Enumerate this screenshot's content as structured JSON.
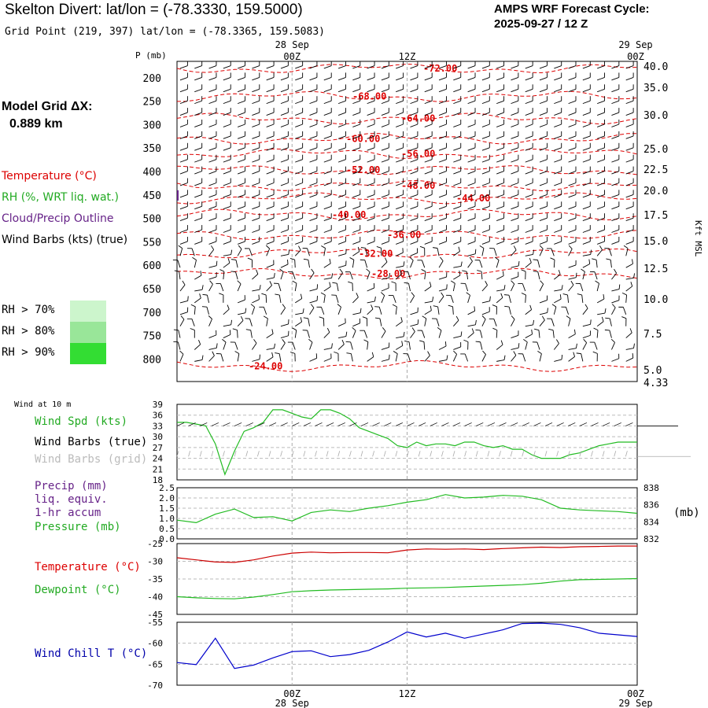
{
  "header": {
    "title": "Skelton Divert:  lat/lon = (-78.3330, 159.5000)",
    "subtitle": "Grid Point (219, 397) lat/lon = (-78.3365, 159.5083)",
    "cycle_line1": "AMPS WRF Forecast Cycle:",
    "cycle_line2": "2025-09-27 / 12  Z"
  },
  "grid_info": {
    "label": "Model Grid ΔX:",
    "value": "0.889 km"
  },
  "legend": {
    "temperature": "Temperature (°C)",
    "rh": "RH (%, WRT liq. wat.)",
    "cloud": "Cloud/Precip Outline",
    "wind_barbs": "Wind Barbs (kts) (true)",
    "rh70": "RH > 70%",
    "rh80": "RH > 80%",
    "rh90": "RH > 90%"
  },
  "colors": {
    "temperature": "#dd0000",
    "rh": "#22bb22",
    "cloud": "#662288",
    "rh70": "#ccf5cc",
    "rh80": "#99e699",
    "rh90": "#33dd33",
    "chill": "#0000cc",
    "grid_barbs": "#aaaaaa"
  },
  "time_axis": {
    "top_dates": [
      "28 Sep",
      "29 Sep"
    ],
    "labels": [
      "00Z",
      "12Z",
      "00Z"
    ],
    "bottom_dates": [
      "28 Sep",
      "29 Sep"
    ],
    "hours": [
      12,
      24,
      36,
      48
    ]
  },
  "chart_data": [
    {
      "type": "line",
      "name": "Time-height cross section",
      "ylabel": "P (mb)",
      "y2label": "Kft MSL",
      "pressure_ticks": [
        "200",
        "250",
        "300",
        "350",
        "400",
        "450",
        "500",
        "550",
        "600",
        "650",
        "700",
        "750",
        "800"
      ],
      "pressure_values": [
        200,
        250,
        300,
        350,
        400,
        450,
        500,
        550,
        600,
        650,
        700,
        750,
        800
      ],
      "height_ticks": [
        "40.0",
        "35.0",
        "30.0",
        "25.0",
        "22.5",
        "20.0",
        "17.5",
        "15.0",
        "12.5",
        "10.0",
        "7.5",
        "5.0",
        "4.33"
      ],
      "height_pressures": [
        163,
        185,
        222,
        272,
        304,
        337,
        371,
        410,
        451,
        503,
        561,
        622,
        640
      ],
      "isotherms": [
        {
          "label": "-72.00",
          "value": -72,
          "pressure": 180
        },
        {
          "label": "-68.00",
          "value": -68,
          "pressure": 240
        },
        {
          "label": "-64.00",
          "value": -64,
          "pressure": 287
        },
        {
          "label": "-60.00",
          "value": -60,
          "pressure": 330
        },
        {
          "label": "-56.00",
          "value": -56,
          "pressure": 362
        },
        {
          "label": "-52.00",
          "value": -52,
          "pressure": 397
        },
        {
          "label": "-48.00",
          "value": -48,
          "pressure": 430
        },
        {
          "label": "-44.00",
          "value": -44,
          "pressure": 457
        },
        {
          "label": "-40.00",
          "value": -40,
          "pressure": 492
        },
        {
          "label": "-36.00",
          "value": -36,
          "pressure": 535
        },
        {
          "label": "-32.00",
          "value": -32,
          "pressure": 575
        },
        {
          "label": "-28.00",
          "value": -28,
          "pressure": 618
        },
        {
          "label": "-24.00",
          "value": -24,
          "pressure": 815
        }
      ]
    },
    {
      "type": "line",
      "name": "Wind at 10 m",
      "title": "Wind at 10 m",
      "series_label": "Wind Spd (kts)",
      "barbs_true_label": "Wind Barbs (true)",
      "barbs_grid_label": "Wind Barbs (grid)",
      "ylim": [
        18,
        39
      ],
      "yticks": [
        "39",
        "36",
        "33",
        "30",
        "27",
        "24",
        "21",
        "18"
      ],
      "ytick_values": [
        39,
        36,
        33,
        30,
        27,
        24,
        21,
        18
      ],
      "x": [
        0,
        1,
        2,
        3,
        4,
        5,
        6,
        7,
        8,
        9,
        10,
        11,
        12,
        13,
        14,
        15,
        16,
        17,
        18,
        19,
        20,
        21,
        22,
        23,
        24,
        25,
        26,
        27,
        28,
        29,
        30,
        31,
        32,
        33,
        34,
        35,
        36,
        37,
        38,
        39,
        40,
        41,
        42,
        43,
        44,
        45,
        46,
        47,
        48
      ],
      "values": [
        34,
        34,
        33.5,
        33,
        28,
        19.5,
        26,
        31.5,
        32.5,
        34,
        37.5,
        37.5,
        36.5,
        35.5,
        35,
        37.5,
        37.5,
        36.5,
        35,
        32.5,
        31.5,
        30.5,
        29.5,
        27.5,
        27,
        28.5,
        27.5,
        28,
        28,
        27.5,
        28.5,
        28.5,
        27.5,
        27,
        27.5,
        26.5,
        26.5,
        25,
        24,
        24,
        24,
        25,
        25.5,
        26.5,
        27.5,
        28,
        28.5,
        28.5,
        28.5
      ]
    },
    {
      "type": "line",
      "name": "Precip and Pressure",
      "series_labels": [
        "Precip (mm)",
        "liq. equiv.",
        "1-hr accum",
        "Pressure (mb)"
      ],
      "y1lim": [
        0,
        2.5
      ],
      "y1ticks": [
        "2.5",
        "2.0",
        "1.5",
        "1.0",
        "0.5",
        "0.0"
      ],
      "y1tick_values": [
        2.5,
        2.0,
        1.5,
        1.0,
        0.5,
        0.0
      ],
      "y2lim": [
        832,
        838
      ],
      "y2ticks": [
        "838",
        "836",
        "834",
        "832"
      ],
      "y2tick_values": [
        838,
        836,
        834,
        832
      ],
      "y2label": "(mb)",
      "x": [
        0,
        2,
        4,
        6,
        8,
        10,
        12,
        14,
        16,
        18,
        20,
        22,
        24,
        26,
        28,
        30,
        32,
        34,
        36,
        38,
        40,
        42,
        44,
        46,
        48
      ],
      "pressure": [
        834.2,
        833.9,
        834.9,
        835.5,
        834.5,
        834.6,
        834.1,
        835.1,
        835.4,
        835.2,
        835.6,
        835.9,
        836.3,
        836.6,
        837.2,
        836.8,
        836.9,
        837.1,
        837.0,
        836.6,
        835.6,
        835.4,
        835.3,
        835.2,
        835.0
      ]
    },
    {
      "type": "line",
      "name": "Temperature and Dewpoint",
      "series_labels": [
        "Temperature (°C)",
        "Dewpoint (°C)"
      ],
      "ylim": [
        -45,
        -25
      ],
      "yticks": [
        "-25",
        "-30",
        "-35",
        "-40",
        "-45"
      ],
      "ytick_values": [
        -25,
        -30,
        -35,
        -40,
        -45
      ],
      "x": [
        0,
        2,
        4,
        6,
        8,
        10,
        12,
        14,
        16,
        18,
        20,
        22,
        24,
        26,
        28,
        30,
        32,
        34,
        36,
        38,
        40,
        42,
        44,
        46,
        48
      ],
      "temperature": [
        -29,
        -29.6,
        -30.2,
        -30.3,
        -29.6,
        -28.5,
        -27.7,
        -27.4,
        -27.6,
        -27.5,
        -27.5,
        -27.6,
        -26.8,
        -26.5,
        -26.6,
        -26.5,
        -26.7,
        -26.4,
        -26.2,
        -26.0,
        -26.1,
        -25.9,
        -25.8,
        -25.7,
        -25.7
      ],
      "dewpoint": [
        -40,
        -40.3,
        -40.5,
        -40.6,
        -40.1,
        -39.4,
        -38.6,
        -38.3,
        -38.1,
        -38.0,
        -37.9,
        -37.8,
        -37.6,
        -37.5,
        -37.4,
        -37.2,
        -37.0,
        -36.8,
        -36.6,
        -36.2,
        -35.6,
        -35.2,
        -35.1,
        -35.0,
        -34.9
      ]
    },
    {
      "type": "line",
      "name": "Wind Chill",
      "series_label": "Wind Chill T (°C)",
      "ylim": [
        -70,
        -55
      ],
      "yticks": [
        "-55",
        "-60",
        "-65",
        "-70"
      ],
      "ytick_values": [
        -55,
        -60,
        -65,
        -70
      ],
      "x": [
        0,
        2,
        4,
        6,
        8,
        10,
        12,
        14,
        16,
        18,
        20,
        22,
        24,
        26,
        28,
        30,
        32,
        34,
        36,
        38,
        40,
        42,
        44,
        46,
        48
      ],
      "values": [
        -64.6,
        -65.1,
        -58.8,
        -66.0,
        -65.2,
        -63.5,
        -62.0,
        -61.8,
        -63.2,
        -62.7,
        -61.7,
        -59.7,
        -57.3,
        -58.5,
        -57.6,
        -58.8,
        -57.8,
        -56.8,
        -55.3,
        -55.2,
        -55.5,
        -56.3,
        -57.6,
        -58.0,
        -58.4
      ]
    }
  ]
}
